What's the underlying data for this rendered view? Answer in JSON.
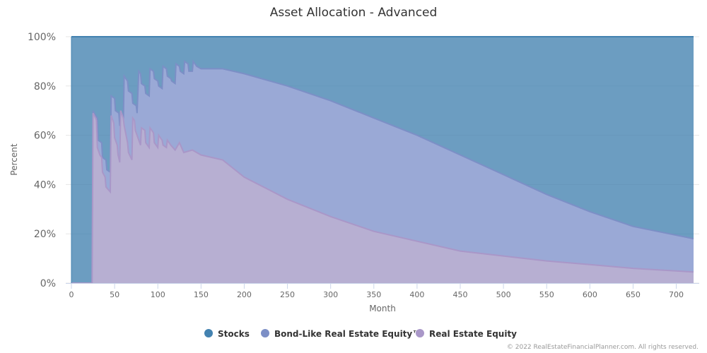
{
  "chart_data": {
    "type": "area",
    "stacking": "percent",
    "title": "Asset Allocation - Advanced",
    "xlabel": "Month",
    "ylabel": "Percent",
    "xlim": [
      0,
      720
    ],
    "ylim": [
      0,
      100
    ],
    "x_ticks": [
      0,
      50,
      100,
      150,
      200,
      250,
      300,
      350,
      400,
      450,
      500,
      550,
      600,
      650,
      700
    ],
    "y_ticks": [
      0,
      20,
      40,
      60,
      80,
      100
    ],
    "y_tick_labels": [
      "0%",
      "20%",
      "40%",
      "60%",
      "80%",
      "100%"
    ],
    "grid": "horizontal",
    "legend_position": "bottom-center",
    "series": [
      {
        "name": "Stocks",
        "color": "#4382b0",
        "description": "remainder up to 100%"
      },
      {
        "name": "Bond-Like Real Estate Equity™",
        "color": "#7c8fc6",
        "cumulative_top_points": [
          [
            0,
            0
          ],
          [
            24,
            0
          ],
          [
            25,
            70
          ],
          [
            28,
            68
          ],
          [
            30,
            67
          ],
          [
            31,
            58
          ],
          [
            35,
            57
          ],
          [
            36,
            51
          ],
          [
            40,
            50
          ],
          [
            41,
            46
          ],
          [
            45,
            45
          ],
          [
            46,
            76
          ],
          [
            50,
            75
          ],
          [
            51,
            70
          ],
          [
            55,
            69
          ],
          [
            56,
            64
          ],
          [
            60,
            63
          ],
          [
            61,
            84
          ],
          [
            65,
            82
          ],
          [
            66,
            78
          ],
          [
            70,
            77
          ],
          [
            71,
            73
          ],
          [
            75,
            72
          ],
          [
            76,
            69
          ],
          [
            78,
            86
          ],
          [
            80,
            85
          ],
          [
            81,
            81
          ],
          [
            85,
            80
          ],
          [
            86,
            77
          ],
          [
            90,
            76
          ],
          [
            91,
            87
          ],
          [
            95,
            86
          ],
          [
            96,
            83
          ],
          [
            100,
            82
          ],
          [
            101,
            80
          ],
          [
            105,
            79
          ],
          [
            106,
            88
          ],
          [
            110,
            87
          ],
          [
            111,
            84
          ],
          [
            115,
            83
          ],
          [
            116,
            82
          ],
          [
            120,
            81
          ],
          [
            121,
            89
          ],
          [
            125,
            88
          ],
          [
            126,
            86
          ],
          [
            130,
            85
          ],
          [
            131,
            90
          ],
          [
            135,
            89
          ],
          [
            136,
            86
          ],
          [
            140,
            86
          ],
          [
            141,
            90
          ],
          [
            145,
            88
          ],
          [
            150,
            87
          ],
          [
            175,
            87
          ],
          [
            200,
            85
          ],
          [
            250,
            80
          ],
          [
            300,
            74
          ],
          [
            350,
            67
          ],
          [
            400,
            60
          ],
          [
            450,
            52
          ],
          [
            500,
            44
          ],
          [
            550,
            36
          ],
          [
            600,
            29
          ],
          [
            650,
            23
          ],
          [
            720,
            18
          ]
        ]
      },
      {
        "name": "Real Estate Equity",
        "color": "#a997c8",
        "cumulative_top_points": [
          [
            0,
            0
          ],
          [
            24,
            0
          ],
          [
            25,
            69
          ],
          [
            28,
            67
          ],
          [
            29,
            66
          ],
          [
            30,
            55
          ],
          [
            33,
            52
          ],
          [
            35,
            51
          ],
          [
            36,
            45
          ],
          [
            39,
            43
          ],
          [
            40,
            39
          ],
          [
            45,
            37
          ],
          [
            46,
            68
          ],
          [
            48,
            66
          ],
          [
            49,
            65
          ],
          [
            50,
            59
          ],
          [
            53,
            56
          ],
          [
            54,
            52
          ],
          [
            56,
            49
          ],
          [
            57,
            70
          ],
          [
            60,
            67
          ],
          [
            61,
            64
          ],
          [
            65,
            57
          ],
          [
            66,
            53
          ],
          [
            70,
            50
          ],
          [
            71,
            67
          ],
          [
            73,
            66
          ],
          [
            74,
            62
          ],
          [
            80,
            56
          ],
          [
            81,
            63
          ],
          [
            85,
            62
          ],
          [
            86,
            57
          ],
          [
            90,
            55
          ],
          [
            91,
            63
          ],
          [
            95,
            61
          ],
          [
            96,
            57
          ],
          [
            100,
            55
          ],
          [
            101,
            60
          ],
          [
            105,
            58
          ],
          [
            106,
            56
          ],
          [
            110,
            55
          ],
          [
            111,
            58
          ],
          [
            115,
            56
          ],
          [
            120,
            54
          ],
          [
            125,
            57
          ],
          [
            130,
            53
          ],
          [
            140,
            54
          ],
          [
            150,
            52
          ],
          [
            175,
            50
          ],
          [
            200,
            43
          ],
          [
            250,
            34
          ],
          [
            300,
            27
          ],
          [
            350,
            21
          ],
          [
            400,
            17
          ],
          [
            450,
            13
          ],
          [
            500,
            11
          ],
          [
            550,
            9
          ],
          [
            600,
            7.5
          ],
          [
            650,
            6
          ],
          [
            720,
            4.5
          ]
        ]
      }
    ]
  },
  "credits": "© 2022 RealEstateFinancialPlanner.com. All rights reserved."
}
